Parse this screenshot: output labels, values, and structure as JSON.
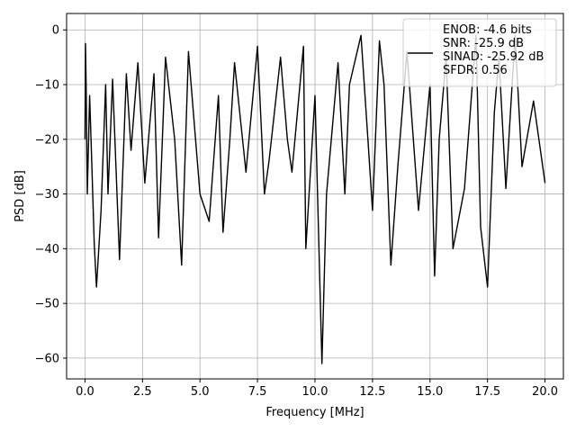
{
  "chart_data": {
    "type": "line",
    "xlabel": "Frequency [MHz]",
    "ylabel": "PSD [dB]",
    "xlim": [
      -0.8,
      20.8
    ],
    "ylim": [
      -63.8,
      3.0
    ],
    "xticks": [
      0.0,
      2.5,
      5.0,
      7.5,
      10.0,
      12.5,
      15.0,
      17.5,
      20.0
    ],
    "xtick_labels": [
      "0.0",
      "2.5",
      "5.0",
      "7.5",
      "10.0",
      "12.5",
      "15.0",
      "17.5",
      "20.0"
    ],
    "yticks": [
      0,
      -10,
      -20,
      -30,
      -40,
      -50,
      -60
    ],
    "ytick_labels": [
      "0",
      "−10",
      "−20",
      "−30",
      "−40",
      "−50",
      "−60"
    ],
    "grid": true,
    "legend_position": "top-right",
    "series": [
      {
        "color": "#000000",
        "x": [
          0.0,
          0.02,
          0.05,
          0.1,
          0.2,
          0.3,
          0.4,
          0.5,
          0.7,
          0.9,
          1.0,
          1.2,
          1.5,
          1.8,
          2.0,
          2.3,
          2.6,
          3.0,
          3.2,
          3.5,
          3.9,
          4.2,
          4.5,
          5.0,
          5.4,
          5.8,
          6.0,
          6.3,
          6.5,
          7.0,
          7.5,
          7.8,
          8.0,
          8.5,
          8.8,
          9.0,
          9.5,
          9.6,
          10.0,
          10.3,
          10.5,
          11.0,
          11.3,
          11.5,
          12.0,
          12.3,
          12.5,
          12.8,
          13.0,
          13.3,
          13.6,
          14.0,
          14.5,
          15.0,
          15.2,
          15.4,
          15.7,
          16.0,
          16.5,
          17.0,
          17.2,
          17.5,
          17.8,
          18.0,
          18.3,
          18.7,
          19.0,
          19.5,
          20.0
        ],
        "values": [
          -20,
          -2.5,
          -10,
          -30,
          -12,
          -25,
          -39,
          -47,
          -33,
          -10,
          -30,
          -9,
          -42,
          -8,
          -22,
          -6,
          -28,
          -8,
          -38,
          -5,
          -20,
          -43,
          -4,
          -30,
          -35,
          -12,
          -37,
          -20,
          -6,
          -26,
          -3,
          -30,
          -24,
          -5,
          -20,
          -26,
          -3,
          -40,
          -12,
          -61,
          -30,
          -6,
          -30,
          -10,
          -1,
          -20,
          -33,
          -2,
          -10,
          -43,
          -25,
          -4,
          -33,
          -10,
          -45,
          -20,
          -5,
          -40,
          -29,
          -1,
          -36,
          -47,
          -15,
          -5,
          -29,
          -1,
          -25,
          -13,
          -28
        ]
      }
    ],
    "legend_entries": [
      "ENOB: -4.6 bits",
      "SNR: -25.9 dB",
      "SINAD: -25.92 dB",
      "SFDR: 0.56"
    ]
  }
}
